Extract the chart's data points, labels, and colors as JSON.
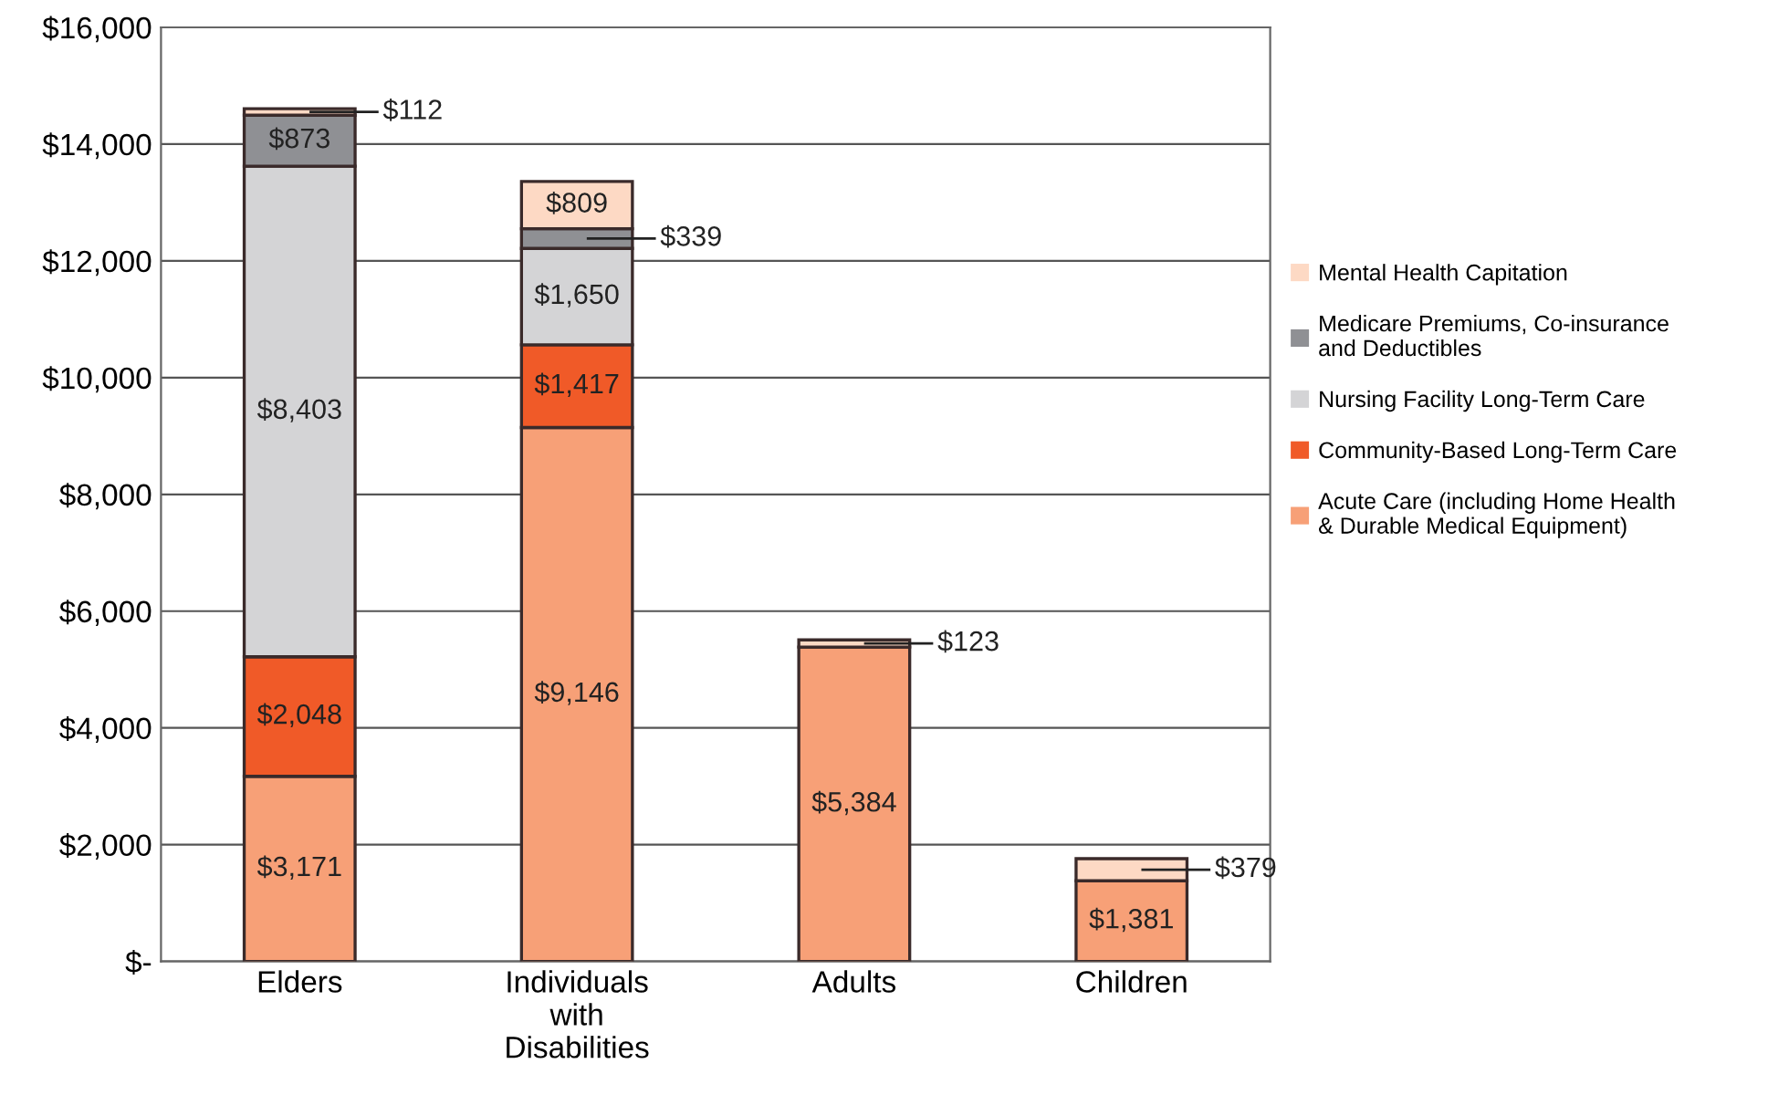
{
  "chart_data": {
    "type": "bar",
    "stacked": true,
    "grid": "y",
    "legend": "right",
    "categories": [
      "Elders",
      "Individuals with Disabilities",
      "Adults",
      "Children"
    ],
    "series": [
      {
        "name": "Acute Care (including Home Health & Durable Medical Equipment)",
        "color": "#f7a077",
        "values": [
          3171,
          9146,
          5384,
          1381
        ],
        "value_labels": [
          "$3,171",
          "$9,146",
          "$5,384",
          "$1,381"
        ]
      },
      {
        "name": "Community-Based Long-Term Care",
        "color": "#f05a28",
        "values": [
          2048,
          1417,
          null,
          null
        ],
        "value_labels": [
          "$2,048",
          "$1,417",
          null,
          null
        ]
      },
      {
        "name": "Nursing Facility Long-Term Care",
        "color": "#d4d4d6",
        "values": [
          8403,
          1650,
          null,
          null
        ],
        "value_labels": [
          "$8,403",
          "$1,650",
          null,
          null
        ]
      },
      {
        "name": "Medicare Premiums, Co-insurance and Deductibles",
        "color": "#8f9094",
        "values": [
          873,
          339,
          null,
          null
        ],
        "value_labels": [
          "$873",
          "$339",
          null,
          null
        ]
      },
      {
        "name": "Mental Health Capitation",
        "color": "#fdd9c4",
        "values": [
          112,
          809,
          123,
          379
        ],
        "value_labels": [
          "$112",
          "$809",
          "$123",
          "$379"
        ]
      }
    ],
    "ylim": [
      0,
      16000
    ],
    "yticks": [
      {
        "value": 0,
        "label": "$-"
      },
      {
        "value": 2000,
        "label": "$2,000"
      },
      {
        "value": 4000,
        "label": "$4,000"
      },
      {
        "value": 6000,
        "label": "$6,000"
      },
      {
        "value": 8000,
        "label": "$8,000"
      },
      {
        "value": 10000,
        "label": "$10,000"
      },
      {
        "value": 12000,
        "label": "$12,000"
      },
      {
        "value": 14000,
        "label": "$14,000"
      },
      {
        "value": 16000,
        "label": "$16,000"
      }
    ]
  }
}
